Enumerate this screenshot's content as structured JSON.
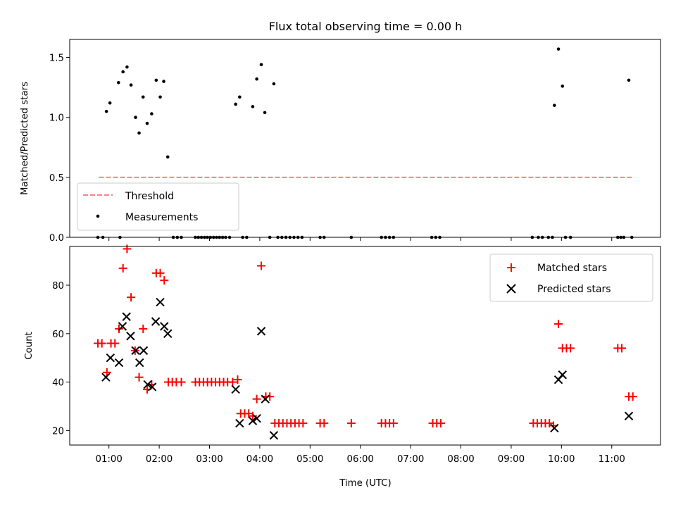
{
  "chart_data": [
    {
      "type": "scatter",
      "title": "Flux total observing time = 0.00 h",
      "xlabel": "",
      "ylabel": "Matched/Predicted stars",
      "ylim": [
        0,
        1.65
      ],
      "yticks": [
        "0.0",
        "0.5",
        "1.0",
        "1.5"
      ],
      "legend_position": "lower-left",
      "grid": false,
      "threshold": {
        "name": "Threshold",
        "value": 0.5,
        "x_range": [
          0.8,
          11.45
        ],
        "color": "#ff8080"
      },
      "series": [
        {
          "name": "Measurements",
          "color": "#000000",
          "marker": "dot",
          "points": [
            [
              0.78,
              0
            ],
            [
              0.88,
              0
            ],
            [
              1.22,
              0
            ],
            [
              2.28,
              0
            ],
            [
              2.36,
              0
            ],
            [
              2.44,
              0
            ],
            [
              2.72,
              0
            ],
            [
              2.78,
              0
            ],
            [
              2.84,
              0
            ],
            [
              2.9,
              0
            ],
            [
              2.96,
              0
            ],
            [
              3.02,
              0
            ],
            [
              3.08,
              0
            ],
            [
              3.14,
              0
            ],
            [
              3.2,
              0
            ],
            [
              3.26,
              0
            ],
            [
              3.32,
              0
            ],
            [
              3.4,
              0
            ],
            [
              3.66,
              0
            ],
            [
              3.74,
              0
            ],
            [
              4.2,
              0
            ],
            [
              4.36,
              0
            ],
            [
              4.44,
              0
            ],
            [
              4.52,
              0
            ],
            [
              4.6,
              0
            ],
            [
              4.68,
              0
            ],
            [
              4.76,
              0
            ],
            [
              4.84,
              0
            ],
            [
              5.2,
              0
            ],
            [
              5.28,
              0
            ],
            [
              5.82,
              0
            ],
            [
              6.42,
              0
            ],
            [
              6.5,
              0
            ],
            [
              6.58,
              0
            ],
            [
              6.66,
              0
            ],
            [
              7.42,
              0
            ],
            [
              7.5,
              0
            ],
            [
              7.58,
              0
            ],
            [
              9.42,
              0
            ],
            [
              9.54,
              0
            ],
            [
              9.62,
              0
            ],
            [
              9.74,
              0
            ],
            [
              9.82,
              0
            ],
            [
              10.08,
              0
            ],
            [
              10.18,
              0
            ],
            [
              11.12,
              0
            ],
            [
              11.18,
              0
            ],
            [
              11.24,
              0
            ],
            [
              11.4,
              0
            ],
            [
              0.95,
              1.05
            ],
            [
              1.02,
              1.12
            ],
            [
              1.19,
              1.29
            ],
            [
              1.28,
              1.38
            ],
            [
              1.36,
              1.42
            ],
            [
              1.44,
              1.27
            ],
            [
              1.53,
              1.0
            ],
            [
              1.6,
              0.87
            ],
            [
              1.68,
              1.17
            ],
            [
              1.76,
              0.95
            ],
            [
              1.85,
              1.03
            ],
            [
              1.94,
              1.31
            ],
            [
              2.02,
              1.17
            ],
            [
              2.09,
              1.3
            ],
            [
              2.17,
              0.67
            ],
            [
              3.52,
              1.11
            ],
            [
              3.6,
              1.17
            ],
            [
              3.86,
              1.09
            ],
            [
              3.94,
              1.32
            ],
            [
              4.03,
              1.44
            ],
            [
              4.1,
              1.04
            ],
            [
              4.28,
              1.28
            ],
            [
              9.86,
              1.1
            ],
            [
              9.94,
              1.57
            ],
            [
              10.02,
              1.26
            ],
            [
              11.34,
              1.31
            ]
          ]
        }
      ]
    },
    {
      "type": "scatter",
      "title": "",
      "xlabel": "Time (UTC)",
      "ylabel": "Count",
      "ylim": [
        14,
        96
      ],
      "yticks": [
        "20",
        "40",
        "60",
        "80"
      ],
      "xlim": [
        0.22,
        11.97
      ],
      "xticks": [
        "01:00",
        "02:00",
        "03:00",
        "04:00",
        "05:00",
        "06:00",
        "07:00",
        "08:00",
        "09:00",
        "10:00",
        "11:00"
      ],
      "legend_position": "upper-right",
      "grid": false,
      "series": [
        {
          "name": "Matched stars",
          "color": "#ff0000",
          "marker": "plus",
          "points": [
            [
              0.78,
              56
            ],
            [
              0.86,
              56
            ],
            [
              0.96,
              44
            ],
            [
              1.04,
              56
            ],
            [
              1.12,
              56
            ],
            [
              1.2,
              62
            ],
            [
              1.28,
              87
            ],
            [
              1.36,
              95
            ],
            [
              1.44,
              75
            ],
            [
              1.52,
              53
            ],
            [
              1.6,
              42
            ],
            [
              1.68,
              62
            ],
            [
              1.76,
              37
            ],
            [
              1.85,
              39
            ],
            [
              1.94,
              85
            ],
            [
              2.02,
              85
            ],
            [
              2.1,
              82
            ],
            [
              2.18,
              40
            ],
            [
              2.26,
              40
            ],
            [
              2.34,
              40
            ],
            [
              2.44,
              40
            ],
            [
              2.72,
              40
            ],
            [
              2.8,
              40
            ],
            [
              2.88,
              40
            ],
            [
              2.96,
              40
            ],
            [
              3.04,
              40
            ],
            [
              3.12,
              40
            ],
            [
              3.2,
              40
            ],
            [
              3.28,
              40
            ],
            [
              3.36,
              40
            ],
            [
              3.46,
              40
            ],
            [
              3.56,
              41
            ],
            [
              3.62,
              27
            ],
            [
              3.7,
              27
            ],
            [
              3.78,
              27
            ],
            [
              3.86,
              26
            ],
            [
              3.94,
              33
            ],
            [
              4.03,
              88
            ],
            [
              4.12,
              34
            ],
            [
              4.2,
              34
            ],
            [
              4.3,
              23
            ],
            [
              4.38,
              23
            ],
            [
              4.46,
              23
            ],
            [
              4.54,
              23
            ],
            [
              4.62,
              23
            ],
            [
              4.7,
              23
            ],
            [
              4.78,
              23
            ],
            [
              4.86,
              23
            ],
            [
              5.2,
              23
            ],
            [
              5.28,
              23
            ],
            [
              5.82,
              23
            ],
            [
              6.42,
              23
            ],
            [
              6.5,
              23
            ],
            [
              6.58,
              23
            ],
            [
              6.66,
              23
            ],
            [
              7.44,
              23
            ],
            [
              7.52,
              23
            ],
            [
              7.6,
              23
            ],
            [
              9.44,
              23
            ],
            [
              9.52,
              23
            ],
            [
              9.6,
              23
            ],
            [
              9.68,
              23
            ],
            [
              9.76,
              23
            ],
            [
              9.84,
              22
            ],
            [
              9.94,
              64
            ],
            [
              10.02,
              54
            ],
            [
              10.1,
              54
            ],
            [
              10.18,
              54
            ],
            [
              11.12,
              54
            ],
            [
              11.2,
              54
            ],
            [
              11.34,
              34
            ],
            [
              11.42,
              34
            ]
          ]
        },
        {
          "name": "Predicted stars",
          "color": "#000000",
          "marker": "x",
          "points": [
            [
              0.94,
              42
            ],
            [
              1.03,
              50
            ],
            [
              1.2,
              48
            ],
            [
              1.27,
              63
            ],
            [
              1.35,
              67
            ],
            [
              1.43,
              59
            ],
            [
              1.53,
              53
            ],
            [
              1.61,
              48
            ],
            [
              1.69,
              53
            ],
            [
              1.77,
              39
            ],
            [
              1.86,
              38
            ],
            [
              1.93,
              65
            ],
            [
              2.02,
              73
            ],
            [
              2.1,
              63
            ],
            [
              2.17,
              60
            ],
            [
              3.52,
              37
            ],
            [
              3.6,
              23
            ],
            [
              3.86,
              24
            ],
            [
              3.94,
              25
            ],
            [
              4.03,
              61
            ],
            [
              4.11,
              33
            ],
            [
              4.28,
              18
            ],
            [
              9.86,
              21
            ],
            [
              9.94,
              41
            ],
            [
              10.02,
              43
            ],
            [
              11.34,
              26
            ]
          ]
        }
      ]
    }
  ]
}
